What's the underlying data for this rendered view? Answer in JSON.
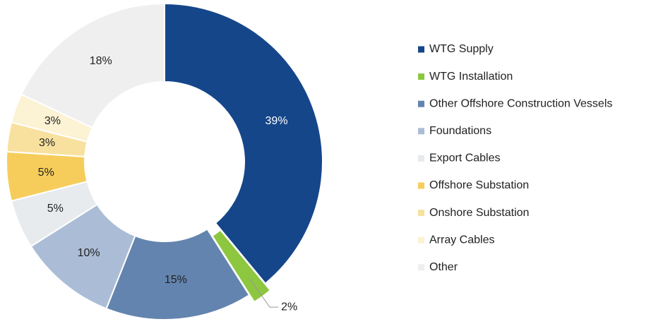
{
  "chart_data": {
    "type": "pie",
    "categories": [
      "WTG Supply",
      "WTG Installation",
      "Other Offshore Construction Vessels",
      "Foundations",
      "Export Cables",
      "Offshore Substation",
      "Onshore Substation",
      "Array Cables",
      "Other"
    ],
    "values": [
      39,
      2,
      15,
      10,
      5,
      5,
      3,
      3,
      18
    ],
    "value_labels": [
      "39%",
      "2%",
      "15%",
      "10%",
      "5%",
      "5%",
      "3%",
      "3%",
      "18%"
    ],
    "colors": [
      "#15468a",
      "#8dc63f",
      "#6384ae",
      "#abbdd6",
      "#e8ebee",
      "#f6cd5b",
      "#f8e19f",
      "#fcf2d4",
      "#efefef"
    ],
    "donut": true,
    "exploded": [
      1
    ],
    "legend": "right"
  }
}
